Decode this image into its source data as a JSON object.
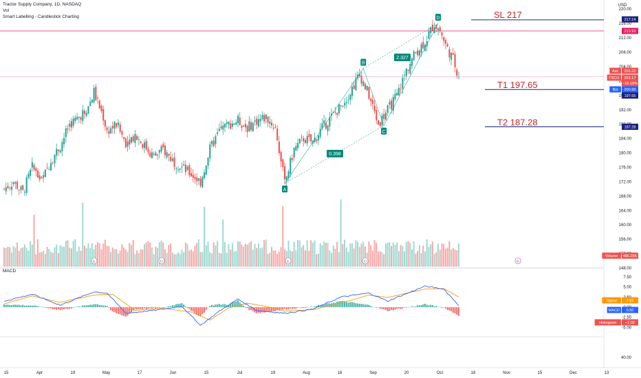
{
  "legend": {
    "title": "Tractor Supply Company, 1D, NASDAQ",
    "vol": "Vol",
    "indicator": "Smart Labelling - Candlestick Charting"
  },
  "macd_title": "MACD",
  "currency": "USD",
  "colors": {
    "up": "#26a69a",
    "down": "#ef5350",
    "level": "#1a237e",
    "level_text": "#c62828",
    "pink_line": "#e91e63",
    "blue_line": "#2962ff",
    "orange_line": "#ff9800",
    "vol_up": "#9fd8d2",
    "vol_down": "#f7a9a7"
  },
  "annotations": {
    "sl": "SL  217",
    "t1": "T1  197.65",
    "t2": "T2  187.28",
    "ratio_upper": "2.327",
    "ratio_lower": "0.398",
    "points": [
      "A",
      "B",
      "C",
      "D"
    ]
  },
  "price_axis_ticks": [
    "220.00",
    "216.00",
    "212.00",
    "208.00",
    "204.00",
    "200.00",
    "196.00",
    "192.00",
    "188.00",
    "184.00",
    "180.00",
    "176.00",
    "172.00",
    "168.00",
    "164.00",
    "160.00",
    "156.00",
    "152.00",
    "148.00"
  ],
  "macd_axis_ticks": [
    "7.50",
    "5.00",
    "2.50",
    "0.00",
    "-2.50",
    "-5.00",
    "40.00"
  ],
  "price_tags": [
    {
      "label": "",
      "value": "217.14",
      "color": "#1a237e"
    },
    {
      "label": "",
      "value": "213.93",
      "color": "#e91e63"
    },
    {
      "label": "Ask",
      "value": "201.22",
      "color": "#ef5350"
    },
    {
      "label": "TSCO",
      "value": "201.17",
      "color": "#ef5350"
    },
    {
      "label": "",
      "value": "−16.18%",
      "color": "#ef5350"
    },
    {
      "label": "Bid",
      "value": "200.99",
      "color": "#2962ff"
    },
    {
      "label": "",
      "value": "197.65",
      "color": "#1a237e"
    },
    {
      "label": "",
      "value": "187.28",
      "color": "#1a237e"
    },
    {
      "label": "Volume",
      "value": "486.28K",
      "color": "#ef5350"
    },
    {
      "label": "Signal",
      "value": "2.52",
      "color": "#ff9800"
    },
    {
      "label": "MACD",
      "value": "0.50",
      "color": "#2962ff"
    },
    {
      "label": "Histogram",
      "value": "−2.02",
      "color": "#ef5350"
    }
  ],
  "time_axis": [
    "15",
    "Apr",
    "19",
    "May",
    "17",
    "Jun",
    "15",
    "Jul",
    "19",
    "Aug",
    "16",
    "Sep",
    "20",
    "Oct",
    "18",
    "Nov",
    "15",
    "Dec",
    "13"
  ],
  "chart_data": {
    "type": "candlestick",
    "symbol": "TSCO",
    "interval": "1D",
    "ylim": [
      148,
      221
    ],
    "levels": {
      "sl": 217,
      "t1": 197.65,
      "t2": 187.28,
      "pink": 213.93
    },
    "pattern_points": {
      "A": 171.5,
      "B": 203.5,
      "C": 187.6,
      "D": 216.0
    },
    "close_anchors": [
      [
        0,
        170
      ],
      [
        5,
        172
      ],
      [
        10,
        169
      ],
      [
        15,
        176
      ],
      [
        20,
        172
      ],
      [
        25,
        178
      ],
      [
        30,
        182
      ],
      [
        35,
        188
      ],
      [
        40,
        190
      ],
      [
        45,
        193
      ],
      [
        48,
        197
      ],
      [
        50,
        194
      ],
      [
        53,
        190
      ],
      [
        55,
        186
      ],
      [
        60,
        188
      ],
      [
        65,
        183
      ],
      [
        70,
        185
      ],
      [
        75,
        182
      ],
      [
        80,
        179
      ],
      [
        85,
        181
      ],
      [
        90,
        178
      ],
      [
        95,
        176
      ],
      [
        100,
        174
      ],
      [
        105,
        172
      ],
      [
        110,
        181
      ],
      [
        115,
        186
      ],
      [
        120,
        188
      ],
      [
        125,
        189
      ],
      [
        130,
        187
      ],
      [
        135,
        189
      ],
      [
        140,
        190
      ],
      [
        145,
        187
      ],
      [
        150,
        171.5
      ],
      [
        155,
        181
      ],
      [
        160,
        184
      ],
      [
        165,
        183
      ],
      [
        170,
        187
      ],
      [
        175,
        190
      ],
      [
        180,
        193
      ],
      [
        185,
        197
      ],
      [
        190,
        202
      ],
      [
        195,
        196
      ],
      [
        200,
        188
      ],
      [
        205,
        192
      ],
      [
        210,
        196
      ],
      [
        215,
        203
      ],
      [
        220,
        208
      ],
      [
        225,
        211
      ],
      [
        230,
        216
      ],
      [
        233,
        214
      ],
      [
        236,
        210
      ],
      [
        240,
        206
      ],
      [
        243,
        201.2
      ]
    ],
    "macd_anchors": [
      [
        0,
        1.5
      ],
      [
        15,
        3.2
      ],
      [
        30,
        0.5
      ],
      [
        48,
        3.8
      ],
      [
        55,
        3.5
      ],
      [
        65,
        -1.5
      ],
      [
        80,
        -0.8
      ],
      [
        95,
        0.2
      ],
      [
        105,
        -4.5
      ],
      [
        115,
        -1.0
      ],
      [
        125,
        2.0
      ],
      [
        135,
        -0.8
      ],
      [
        150,
        -1.5
      ],
      [
        165,
        -0.5
      ],
      [
        180,
        2.5
      ],
      [
        195,
        3.5
      ],
      [
        205,
        1.5
      ],
      [
        225,
        5.2
      ],
      [
        235,
        4.5
      ],
      [
        243,
        0.5
      ]
    ],
    "signal_anchors": [
      [
        0,
        0.8
      ],
      [
        15,
        2.8
      ],
      [
        30,
        1.2
      ],
      [
        48,
        3.0
      ],
      [
        58,
        3.2
      ],
      [
        70,
        -0.8
      ],
      [
        85,
        -0.3
      ],
      [
        100,
        -1.2
      ],
      [
        110,
        -3.2
      ],
      [
        120,
        -0.2
      ],
      [
        130,
        1.0
      ],
      [
        140,
        0.2
      ],
      [
        150,
        -1.0
      ],
      [
        165,
        -0.6
      ],
      [
        180,
        1.0
      ],
      [
        195,
        3.0
      ],
      [
        205,
        2.4
      ],
      [
        225,
        4.5
      ],
      [
        235,
        4.6
      ],
      [
        243,
        2.52
      ]
    ],
    "volume_scale_k": [
      0,
      3000
    ],
    "macd_ylim": [
      -7,
      8
    ]
  }
}
